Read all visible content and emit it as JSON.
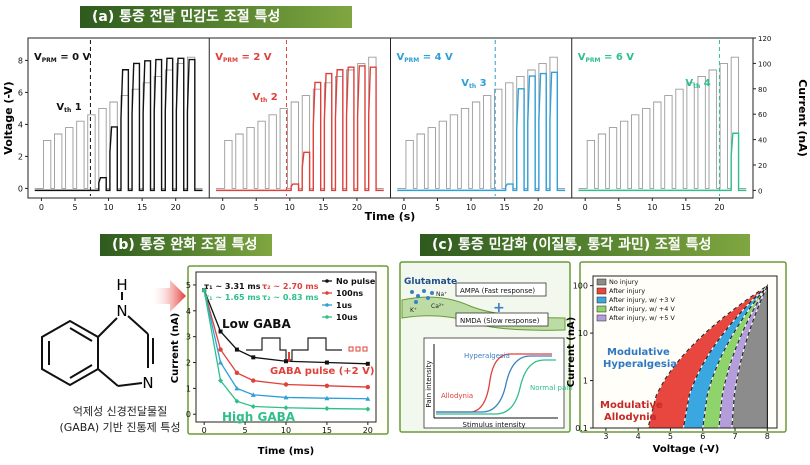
{
  "banners": {
    "a": "(a) 통증 전달 민감도 조절 특성",
    "b": "(b) 통증 완화 조절 특성",
    "c": "(c) 통증 민감화 (이질통, 통각 과민) 조절 특성"
  },
  "colors": {
    "black": "#111111",
    "red": "#e0403a",
    "blue": "#2e9fd8",
    "green": "#2fbf8a",
    "gray": "#8c8c8c"
  },
  "molecule": {
    "atoms": [
      "H",
      "N",
      "N"
    ],
    "caption_line1": "억제성 신경전달물질",
    "caption_line2": "(GABA) 기반 진통제 특성"
  },
  "chart_data": [
    {
      "type": "line",
      "panel": "a",
      "xlabel": "Time (s)",
      "ylabel_left": "Voltage (-V)",
      "ylabel_right": "Current (nA)",
      "x_ticks": [
        "0",
        "5",
        "10",
        "15",
        "20"
      ],
      "y_left_ticks": [
        "0",
        "2",
        "4",
        "6",
        "8"
      ],
      "y_right_ticks": [
        "0",
        "20",
        "40",
        "60",
        "80",
        "100",
        "120"
      ],
      "xlim": [
        -2,
        25
      ],
      "ylim_left": [
        -0.6,
        9.4
      ],
      "ylim_right": [
        -6,
        120
      ],
      "subpanels": [
        {
          "label_prefix": "V",
          "label_sub": "PRM",
          "label_value": "= 0 V",
          "th_prefix": "V",
          "th_sub": "th",
          "th_value": "1",
          "color": "#111111",
          "threshold_s": 7.3
        },
        {
          "label_prefix": "V",
          "label_sub": "PRM",
          "label_value": "= 2 V",
          "th_prefix": "V",
          "th_sub": "th",
          "th_value": "2",
          "color": "#e0403a",
          "threshold_s": 9.5
        },
        {
          "label_prefix": "V",
          "label_sub": "PRM",
          "label_value": "= 4 V",
          "th_prefix": "V",
          "th_sub": "th",
          "th_value": "3",
          "color": "#2e9fd8",
          "threshold_s": 13.6
        },
        {
          "label_prefix": "V",
          "label_sub": "PRM",
          "label_value": "= 6 V",
          "th_prefix": "V",
          "th_sub": "th",
          "th_value": "4",
          "color": "#2fbf8a",
          "threshold_s": 20.0
        }
      ],
      "pulse_voltage_V": [
        3.0,
        3.4,
        3.8,
        4.2,
        4.6,
        5.0,
        5.4,
        5.8,
        6.2,
        6.6,
        7.0,
        7.4,
        7.8,
        8.2
      ],
      "response_current_nA": [
        [
          0,
          0,
          0,
          0,
          0,
          10,
          50,
          95,
          100,
          102,
          103,
          104,
          104,
          103
        ],
        [
          0,
          0,
          0,
          0,
          0,
          0,
          5,
          30,
          85,
          92,
          95,
          97,
          98,
          97
        ],
        [
          0,
          0,
          0,
          0,
          0,
          0,
          0,
          0,
          0,
          5,
          80,
          90,
          92,
          93
        ],
        [
          0,
          0,
          0,
          0,
          0,
          0,
          0,
          0,
          0,
          0,
          0,
          0,
          0,
          45
        ]
      ]
    },
    {
      "type": "line",
      "panel": "b",
      "xlabel": "Time (ms)",
      "ylabel": "Current (nA)",
      "x_ticks": [
        "0",
        "5",
        "10",
        "15",
        "20"
      ],
      "y_ticks": [
        "0",
        "1",
        "2",
        "3",
        "4",
        "5"
      ],
      "xlim": [
        -1,
        21
      ],
      "ylim": [
        -0.3,
        5.5
      ],
      "legend_position": "top-right",
      "series": [
        {
          "name": "No pulse",
          "color": "#111111",
          "marker": "square",
          "values": [
            4.8,
            3.2,
            2.5,
            2.2,
            2.05,
            2.0,
            1.95
          ]
        },
        {
          "name": "100ns",
          "color": "#e0403a",
          "marker": "circle",
          "values": [
            4.8,
            2.5,
            1.6,
            1.3,
            1.15,
            1.1,
            1.05
          ]
        },
        {
          "name": "1us",
          "color": "#2e9fd8",
          "marker": "triangle",
          "values": [
            4.8,
            2.0,
            1.0,
            0.75,
            0.65,
            0.62,
            0.6
          ]
        },
        {
          "name": "10us",
          "color": "#2fbf8a",
          "marker": "diamond",
          "values": [
            4.8,
            1.3,
            0.5,
            0.3,
            0.25,
            0.22,
            0.2
          ]
        }
      ],
      "x": [
        0,
        2,
        4,
        6,
        10,
        15,
        20
      ],
      "annotations": {
        "tau_black_1": "τ₁ ~ 3.31 ms",
        "tau_red_2": "τ₂ ~ 2.70 ms",
        "tau_green_1": "τ₁ ~ 1.65 ms",
        "tau_green_2": "τ₂ ~ 0.83 ms",
        "low_gaba": "Low GABA",
        "gaba_pulse": "GABA pulse (+2 V)",
        "high_gaba": "High GABA"
      }
    },
    {
      "type": "area",
      "panel": "c",
      "xlabel": "Voltage (-V)",
      "ylabel": "Current (nA)",
      "x_ticks": [
        "3",
        "4",
        "5",
        "6",
        "7",
        "8"
      ],
      "y_ticks": [
        "0.1",
        "1",
        "10",
        "100"
      ],
      "y_scale": "log",
      "xlim": [
        2.6,
        8.3
      ],
      "ylim": [
        0.1,
        160
      ],
      "legend_position": "top-left",
      "series": [
        {
          "name": "No injury",
          "color": "#8c8c8c",
          "onset_V": 6.9
        },
        {
          "name": "After injury",
          "color": "#e8473f",
          "onset_V": 4.3
        },
        {
          "name": "After injury, w/ +3 V",
          "color": "#3aa7e0",
          "onset_V": 5.4
        },
        {
          "name": "After injury, w/ +4 V",
          "color": "#8ed36b",
          "onset_V": 6.0
        },
        {
          "name": "After injury, w/ +5 V",
          "color": "#b39ddb",
          "onset_V": 6.5
        }
      ],
      "annotations": {
        "hyper_line1": "Modulative",
        "hyper_line2": "Hyperalgesia",
        "allo_line1": "Modulative",
        "allo_line2": "Allodynia"
      }
    }
  ],
  "mechanism": {
    "glutamate": "Glutamate",
    "ion_na": "Na⁺",
    "ion_ca": "Ca²⁺",
    "ion_k": "K⁺",
    "ampa": "AMPA (Fast response)",
    "nmda": "NMDA (Slow response)",
    "hyperalgesia": "Hyperalgesia",
    "allodynia": "Allodynia",
    "normal_pain": "Normal pain",
    "pain_intensity": "Pain intensity",
    "stimulus_intensity": "Stimulus intensity"
  }
}
